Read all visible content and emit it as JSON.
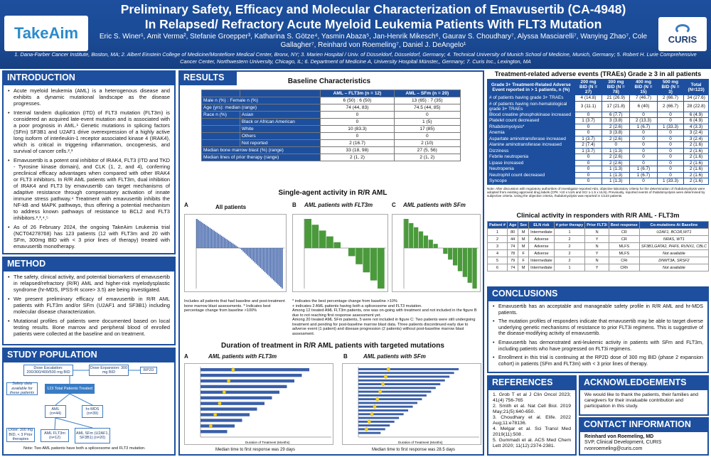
{
  "header": {
    "title_line1": "Preliminary Safety, Efficacy and Molecular Characterization of Emavusertib (CA-4948)",
    "title_line2": "In Relapsed/ Refractory Acute Myeloid Leukemia Patients With FLT3 Mutation",
    "authors": "Eric S. Winer¹, Amit Verma², Stefanie Groepper³, Katharina S. Götze⁴, Yasmin Abaza⁵, Jan-Henrik Mikesch⁶, Gaurav S. Choudhary⁷, Alyssa Masciarelli⁷, Wanying Zhao⁷, Cole Gallagher⁷, Reinhard von Roemeling⁷, Daniel J. DeAngelo¹",
    "affiliations": "1. Dana-Farber Cancer Institute, Boston, MA; 2. Albert Einstein College of Medicine/Montefiore Medical Center, Bronx, NY; 3. Marien Hospital / Univ. of Düsseldorf, Düsseldorf, Germany; 4. Technical University of Munich School of Medicine, Munich, Germany; 5. Robert H. Lurie Comprehensive Cancer Center, Northwestern University, Chicago, IL; 6. Department of Medicine A, University Hospital Münster,, Germany; 7. Curis Inc., Lexington, MA",
    "logo_left": "TakeAim",
    "logo_right": "CURIS"
  },
  "introduction": {
    "heading": "INTRODUCTION",
    "bullets": [
      "Acute myeloid leukemia (AML) is a heterogenous disease and exhibits a dynamic mutational landscape as the disease progresses.",
      "Internal tandem duplication (ITD) of FLT3 mutation (FLT3m) is considered an acquired late-event mutation and is associated with a poor prognosis in AML.¹ Genetic mutations in splicing factors (SFm) SF3B1 and U2AF1 drive overexpression of a highly active long isoform of interleukin-1 receptor associated kinase 4 (IRAK4), which is critical in triggering inflammation, oncogenesis, and survival of cancer cells.²,³",
      "Emavusertib is a potent oral inhibitor of IRAK4, FLT3 (ITD and TKD - Tyrosine kinase domain), and CLK (1, 2, and 4), conferring preclinical efficacy advantages when compared with other IRAK4 or FLT3 inhibitors. In R/R AML patients with FLT3m, dual inhibition of IRAK4 and FLT3 by emavusertib can target mechanisms of adaptive resistance through compensatory activation of innate immune stress pathway.⁴ Treatment with emavusertib inhibits the NF-kB and MAPK pathways, thus offering a potential mechanism to address known pathways of resistance to BCL2 and FLT3 inhibitors.²,³,⁴,⁵",
      "As of 26 February 2024, the ongoing TakeAim Leukemia trial (NCT04278768) has 123 patients (12 with FLT3m and 20 with SFm, 300mg BID with < 3 prior lines of therapy) treated with emavusertib monotherapy."
    ]
  },
  "method": {
    "heading": "METHOD",
    "bullets": [
      "The safety, clinical activity, and potential biomarkers of emavusertib in relapsed/refractory (R/R) AML and higher-risk myelodysplastic syndrome (hr-MDS, IPSS-R score> 3.5) are being investigated.",
      "We present preliminary efficacy of emavusertib in R/R AML patients with FLT3m and/or SFm (U2AF1 and SF3B1) including molecular disease characterization.",
      "Mutational profiles of patients were documented based on local testing results. Bone marrow and peripheral blood of enrolled patients were collected at the baseline and on treatment."
    ]
  },
  "study_population": {
    "heading": "STUDY POPULATION",
    "boxes": {
      "dose_esc": "Dose Escalation: 200/300/400/500 mg BID",
      "dose_exp": "Dose Expansion: 300 mg BID",
      "rp2d": "RP2D",
      "safety": "Safety data available for these patients",
      "total": "123 Total Patients Treated",
      "aml": "AML (n=44)",
      "hrmds": "hr-MDS (n=39)",
      "dose300": "Dose: 300 mg BID, < 3 Prior therapies",
      "flt3": "AML FLT3m (n=12)",
      "sfm": "AML SFm (U2AF1, SF3B1) (n=20)"
    },
    "note": "Note: Two AML patients have both a spliceosome and FLT3 mutation."
  },
  "results": {
    "heading": "RESULTS",
    "baseline_title": "Baseline Characteristics",
    "baseline_cols": [
      "",
      "",
      "AML – FLT3m (n = 12)",
      "AML – SFm (n = 20)"
    ],
    "baseline_rows": [
      [
        "Male n (%) : Female n (%)",
        "",
        "6 (50) : 6 (50)",
        "13 (65) : 7 (35)"
      ],
      [
        "Age (yrs): median (range)",
        "",
        "74 (44, 83)",
        "74.5 (44, 85)"
      ],
      [
        "Race n (%)",
        "Asian",
        "0",
        "0"
      ],
      [
        "",
        "Black or African American",
        "0",
        "1 (5)"
      ],
      [
        "",
        "White",
        "10 (83.3)",
        "17 (85)"
      ],
      [
        "",
        "Others",
        "0",
        "0"
      ],
      [
        "",
        "Not reported",
        "2 (16.7)",
        "2 (10)"
      ],
      [
        "Median bone marrow blast (%) (range)",
        "",
        "33 (18, 98)",
        "27 (5, 56)"
      ],
      [
        "Median lines of prior therapy (range)",
        "",
        "2 (1, 2)",
        "2 (1, 2)"
      ]
    ],
    "single_title": "Single-agent activity in R/R AML",
    "panelA": "All patients",
    "panelB": "AML patients with FLT3m",
    "panelC": "AML patients with SFm",
    "noteA": "Includes all patients that had baseline and post-treatment bone marrow blast assessments. * Indicates best percentage change from baseline >100%",
    "notesBC": [
      "* indicates the best percentage change from baseline >10%",
      "+ indicates 2 AML patients having both a spliceosome and FLT3 mutation.",
      "Among 12 treated AML FLT3m patients, one was on-going with treatment and not included in the figure B due to not reaching first response assessment yet.",
      "Among 20 treated AML SFm patients, 5 were not included in figure C: Two patients were still undergoing treatment and pending for post-baseline marrow blast data. Three patients discontinued early due to adverse event (1 patient) and disease progression (2 patients) without post-baseline marrow blast assessment."
    ],
    "duration_title": "Duration of treatment in R/R AML patients with targeted mutations",
    "durA": "AML patients with FLT3m",
    "durB": "AML patients with SFm",
    "durA_median": "Median time to first response was 29 days",
    "durB_median": "Median time to first response was 28.5 days",
    "legend_star": "indicates the initial response/best response of a patient",
    "transplant": "Proceeded to stem cell transplant",
    "not_evaluable": "Not Evaluable",
    "x_label": "Duration of Treatment (Months)"
  },
  "traes": {
    "title": "Treatment-related adverse events (TRAEs) Grade ≥ 3 in all patients",
    "cols": [
      "Grade 3+ Treatment-Related Adverse Event reported in > 1 patients, n (%)",
      "200 mg BID (N = 27)",
      "300 mg BID (N = 78)",
      "400 mg BID (N = 15)",
      "500 mg BID (N = 3)",
      "Total (N=123)"
    ],
    "rows": [
      [
        "# of patients having grade 3+ TRAEs",
        "4 (14.8)",
        "21 (26.9)",
        "7 (46.7)",
        "2 (66.7)",
        "34 (27.6)"
      ],
      [
        "# of patients having non-hematological grade 3+ TRAEs",
        "3 (11.1)",
        "17 (21.8)",
        "6 (40)",
        "2 (66.7)",
        "28 (22.8)"
      ],
      [
        "Blood creatine phosphokinase increased",
        "0",
        "6 (7.7)",
        "0",
        "0",
        "6 (4.9)"
      ],
      [
        "Platelet count decreased",
        "1 (3.7)",
        "3 (3.8)",
        "2 (13.3)",
        "0",
        "6 (4.9)"
      ],
      [
        "Rhabdomyolysis*",
        "0",
        "2 (2.6)",
        "1 (6.7)",
        "1 (33.3)",
        "4 (3.3)"
      ],
      [
        "Anemia",
        "0",
        "3 (3.8)",
        "0",
        "0",
        "3 (2.4)"
      ],
      [
        "Aspartate aminotransferase increased",
        "1 (3.7)",
        "2 (2.6)",
        "0",
        "0",
        "3 (2.4)"
      ],
      [
        "Alanine aminotransferase increased",
        "2 (7.4)",
        "0",
        "0",
        "0",
        "2 (1.6)"
      ],
      [
        "Dizziness",
        "1 (3.7)",
        "1 (1.3)",
        "0",
        "0",
        "2 (1.6)"
      ],
      [
        "Febrile neutropenia",
        "0",
        "2 (2.6)",
        "0",
        "0",
        "2 (1.6)"
      ],
      [
        "Lipase increased",
        "0",
        "2 (2.6)",
        "0",
        "0",
        "2 (1.6)"
      ],
      [
        "Neutropenia",
        "0",
        "1 (1.3)",
        "1 (6.7)",
        "0",
        "2 (1.6)"
      ],
      [
        "Neutrophil count decreased",
        "0",
        "1 (1.3)",
        "1 (6.7)",
        "0",
        "2 (1.6)"
      ],
      [
        "Syncope",
        "0",
        "1 (1.3)",
        "0",
        "1 (33.3)",
        "2 (1.6)"
      ]
    ],
    "note": "Note: After discussion with regulatory authorities of investigator-reported AEs, objective laboratory criteria for the determination of rhabdomyolysis were adopted from existing approved drug labels (CPK >10 x ULN and SCr ≥ 1.5 x ULN). Previously, reported events of rhabdomyolysis were determined by subjective criteria. Using the objective criteria, rhabdomyolysis was reported in 1/123 patients."
  },
  "clinical": {
    "title": "Clinical activity in responders with R/R AML - FLT3m",
    "cols": [
      "Patient #",
      "Age",
      "Sex",
      "ELN risk",
      "# prior therapy",
      "Prior FLT3i",
      "Best response",
      "Co-mutations At Baseline"
    ],
    "rows": [
      [
        "1",
        "80",
        "M",
        "Intermediate",
        "1",
        "N",
        "CR",
        "U2AF1, BCOR,WT1"
      ],
      [
        "2",
        "44",
        "M",
        "Adverse",
        "2",
        "Y",
        "CR",
        "NRAS, WT1"
      ],
      [
        "3",
        "74",
        "M",
        "Adverse",
        "2",
        "N",
        "MLFS",
        "SF3B1,GATA2, PHF6, RUNX1, CBLC"
      ],
      [
        "4",
        "78",
        "F",
        "Adverse",
        "2",
        "Y",
        "MLFS",
        "Not available"
      ],
      [
        "5",
        "79",
        "F",
        "Intermediate",
        "2",
        "N",
        "CRi",
        "DNMT3A, SRSF2"
      ],
      [
        "6",
        "74",
        "M",
        "Intermediate",
        "1",
        "Y",
        "CRh",
        "Not available"
      ]
    ]
  },
  "conclusions": {
    "heading": "CONCLUSIONS",
    "bullets": [
      "Emavusertib has an acceptable and manageable safety profile in R/R AML and hr-MDS patients.",
      "The mutation profiles of responders indicate that emavusertib may be able to target diverse underlying genetic mechanisms of resistance to prior FLT3i regimens. This is suggestive of the disease-modifying activity of emavusertib.",
      "Emavusertib has demonstrated anti-leukemic activity in patients with SFm and FLT3m, including patients who have progressed on FLT3i regimens.",
      "Enrollment in this trial is continuing at the RP2D dose of 300 mg BID (phase 2 expansion cohort) in patients (SFm and FLT3m) with < 3 prior lines of therapy."
    ]
  },
  "references": {
    "heading": "REFERENCES",
    "items": [
      "1. Grob T et al J Clin Oncol 2023; 41(4) 756-765",
      "2. Smith et al. Nat Cell Biol. 2019 May;21(5):640-650.",
      "3. Choudhary et al. Elife. 2022 Aug;11:e78136.",
      "4. Melgar et al. Sci Transl Med 2019(11):508 .",
      "5. Gummadi et al. ACS Med Chem Lett 2020; 11(12):2374-2381."
    ]
  },
  "acknowledgements": {
    "heading": "ACKNOWLEDGEMENTS",
    "text": "We would like to thank the patients, their families and caregivers for their invaluable contribution and participation in this study."
  },
  "contact": {
    "heading": "CONTACT INFORMATION",
    "name": "Reinhard von Roemeling, MD",
    "role": "SVP, Clinical Development, CURIS",
    "email": "rvonroemeling@curis.com"
  },
  "colors": {
    "brand": "#1d4f9e",
    "bar_green": "#4a9a3c",
    "bar_blue": "#3a5fa8",
    "star": "#f2d21b"
  }
}
